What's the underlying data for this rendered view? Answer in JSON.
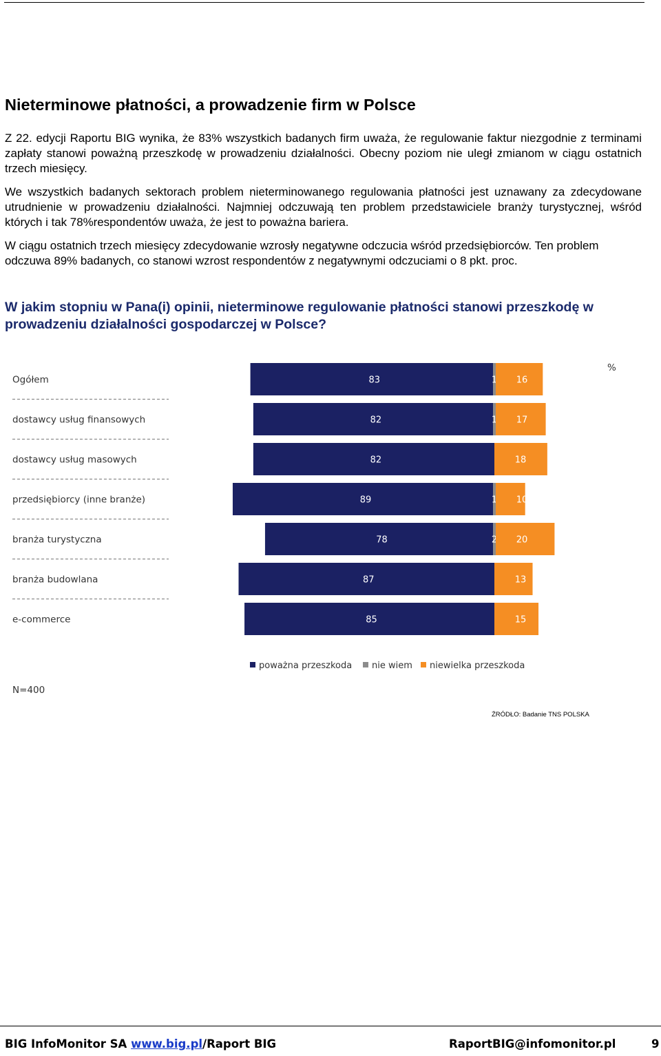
{
  "title": "Nieterminowe płatności, a prowadzenie firm w Polsce",
  "paragraphs": [
    "Z 22. edycji Raportu BIG wynika, że 83% wszystkich badanych firm uważa, że regulowanie faktur niezgodnie z terminami zapłaty stanowi poważną przeszkodę w prowadzeniu działalności. Obecny poziom nie uległ zmianom w ciągu ostatnich trzech miesięcy.",
    "We wszystkich badanych sektorach problem nieterminowanego regulowania płatności jest uznawany za zdecydowane utrudnienie w prowadzeniu działalności. Najmniej odczuwają ten problem przedstawiciele branży turystycznej, wśród których i tak 78%respondentów uważa, że jest to poważna bariera.",
    "W ciągu ostatnich trzech miesięcy zdecydowanie wzrosły negatywne odczucia wśród przedsiębiorców. Ten problem odczuwa 89% badanych, co stanowi wzrost respondentów z negatywnymi odczuciami o 8 pkt. proc."
  ],
  "question": "W jakim stopniu w Pana(i) opinii, nieterminowe regulowanie płatności stanowi przeszkodę w prowadzeniu działalności gospodarczej w Polsce?",
  "chart_data": {
    "type": "bar",
    "orientation": "horizontal-diverging",
    "unit_label": "%",
    "categories": [
      "Ogółem",
      "dostawcy usług finansowych",
      "dostawcy usług masowych",
      "przedsiębiorcy (inne branże)",
      "branża turystyczna",
      "branża budowlana",
      "e-commerce"
    ],
    "series": [
      {
        "name": "poważna przeszkoda",
        "color": "#1b2163",
        "values": [
          83,
          82,
          82,
          89,
          78,
          87,
          85
        ]
      },
      {
        "name": "nie wiem",
        "color": "#8c8c8c",
        "values": [
          1,
          1,
          null,
          1,
          2,
          null,
          null
        ]
      },
      {
        "name": "niewielka przeszkoda",
        "color": "#f58e23",
        "values": [
          16,
          17,
          18,
          10,
          20,
          13,
          15
        ]
      }
    ],
    "sample_note": "N=400",
    "legend_position": "bottom"
  },
  "source": "ŹRÓDŁO: Badanie TNS POLSKA",
  "footer": {
    "org": "BIG InfoMonitor SA ",
    "link": "www.big.pl",
    "suffix": "/Raport BIG",
    "email": "RaportBIG@infomonitor.pl",
    "page": "9"
  }
}
